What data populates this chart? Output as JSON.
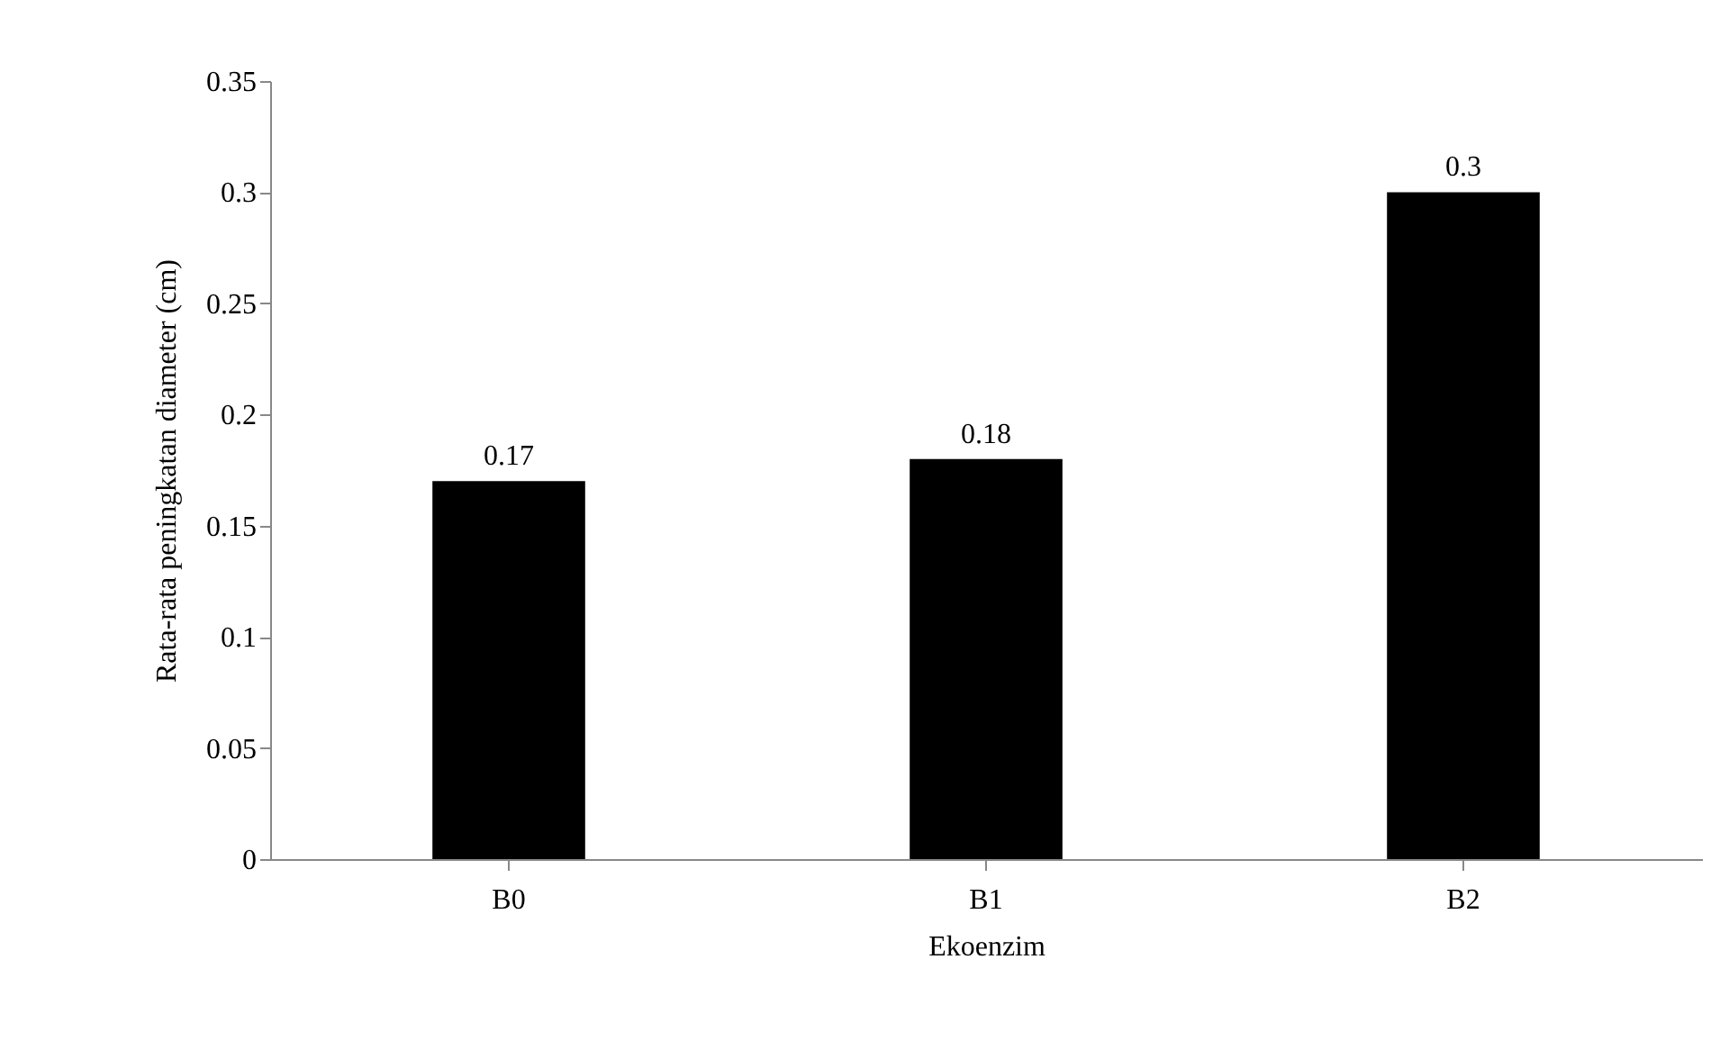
{
  "chart_data": {
    "type": "bar",
    "categories": [
      "B0",
      "B1",
      "B2"
    ],
    "values": [
      0.17,
      0.18,
      0.3
    ],
    "color": "#000000",
    "xlabel": "Ekoenzim",
    "ylabel": "Rata-rata peningkatan diameter (cm)",
    "ylim": [
      0,
      0.35
    ],
    "yticks": [
      0,
      0.05,
      0.1,
      0.15,
      0.2,
      0.25,
      0.3,
      0.35
    ],
    "data_labels": true
  }
}
